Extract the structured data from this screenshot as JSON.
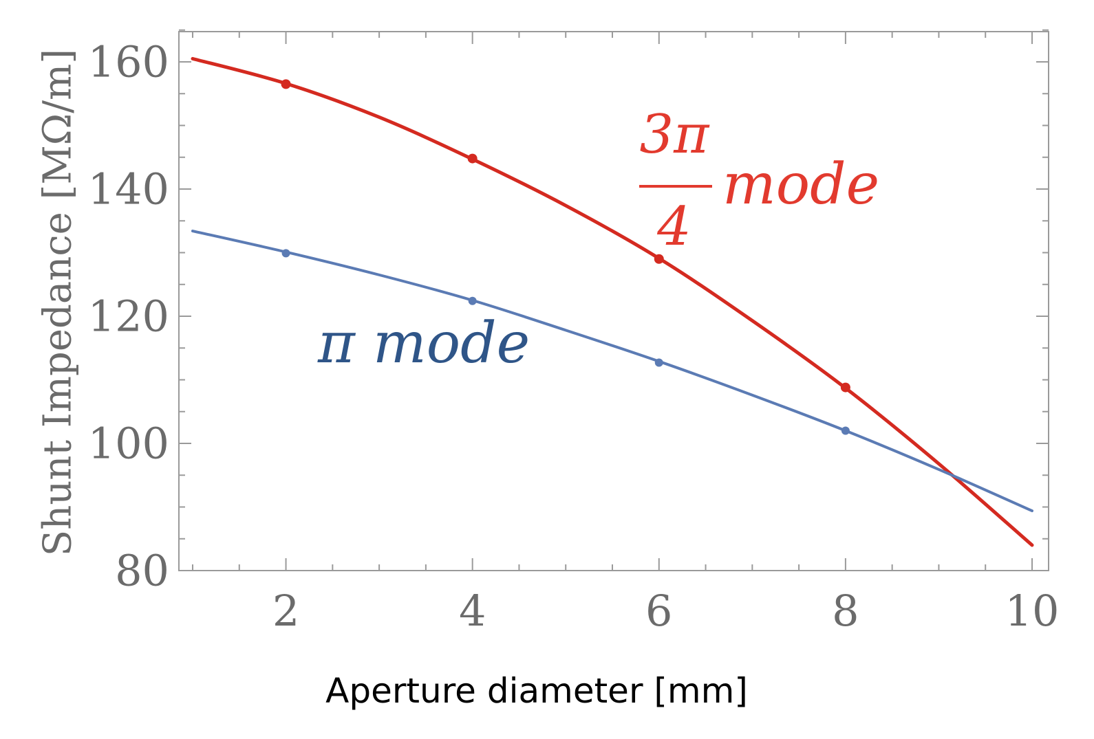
{
  "chart_data": {
    "type": "line",
    "title": "",
    "xlabel": "Aperture diameter [mm]",
    "ylabel": "Shunt Impedance [MΩ/m]",
    "xlim": [
      1,
      10
    ],
    "ylim": [
      80,
      165
    ],
    "xticks": [
      2,
      4,
      6,
      8,
      10
    ],
    "yticks": [
      80,
      100,
      120,
      140,
      160
    ],
    "grid": false,
    "series": [
      {
        "name": "3π/4 mode",
        "color": "#d42a20",
        "curve": {
          "x": [
            1,
            2,
            3,
            4,
            5,
            6,
            7,
            8,
            9,
            10
          ],
          "y": [
            160.5,
            156.6,
            151.3,
            144.7,
            137.4,
            129.1,
            119.3,
            108.7,
            96.8,
            84.0
          ]
        },
        "points": {
          "x": [
            2,
            4,
            6,
            8
          ],
          "y": [
            156.5,
            144.8,
            129.0,
            108.8
          ]
        }
      },
      {
        "name": "π mode",
        "color": "#5b7bb4",
        "curve": {
          "x": [
            1,
            2,
            3,
            4,
            5,
            6,
            7,
            8,
            9,
            10
          ],
          "y": [
            133.4,
            130.1,
            126.5,
            122.5,
            117.8,
            112.9,
            107.6,
            102.0,
            95.9,
            89.4
          ]
        },
        "points": {
          "x": [
            2,
            4,
            6,
            8
          ],
          "y": [
            129.9,
            122.4,
            112.7,
            102.0
          ]
        }
      }
    ],
    "annotations": [
      {
        "series": 0,
        "numerator": "3π",
        "denominator": "4",
        "text": "mode",
        "color": "#e23a2e"
      },
      {
        "series": 1,
        "text": "π mode",
        "color": "#2f5588"
      }
    ]
  }
}
